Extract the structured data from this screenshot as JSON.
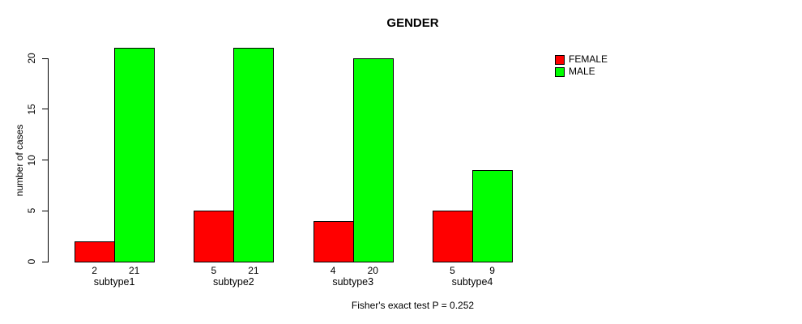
{
  "chart_data": {
    "type": "bar",
    "title": "GENDER",
    "ylabel": "number of cases",
    "xlabel": "",
    "ylim": [
      0,
      21
    ],
    "yticks": [
      0,
      5,
      10,
      15,
      20
    ],
    "categories": [
      "subtype1",
      "subtype2",
      "subtype3",
      "subtype4"
    ],
    "series": [
      {
        "name": "FEMALE",
        "color": "#FF0000",
        "values": [
          2,
          5,
          4,
          5
        ]
      },
      {
        "name": "MALE",
        "color": "#00FF00",
        "values": [
          21,
          21,
          20,
          9
        ]
      }
    ],
    "bar_value_labels": {
      "FEMALE": [
        "2",
        "5",
        "4",
        "5"
      ],
      "MALE": [
        "21",
        "21",
        "20",
        "9"
      ]
    },
    "legend_position": "top-right",
    "grid": false,
    "annotation": "Fisher's exact test P = 0.252"
  }
}
